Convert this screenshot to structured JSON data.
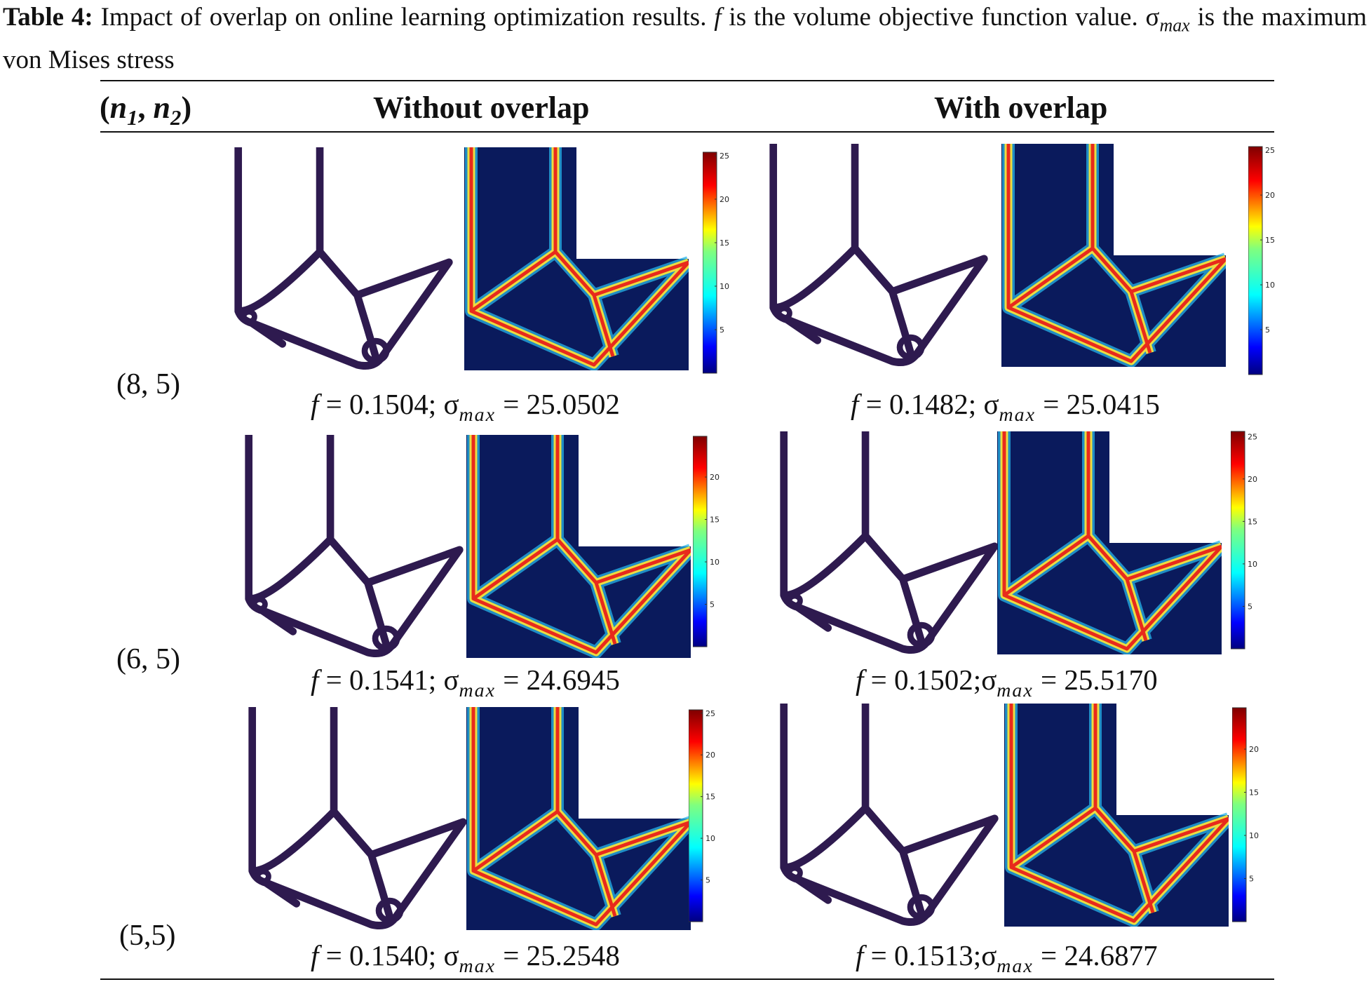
{
  "caption": {
    "label": "Table 4:",
    "text_1": "Impact of overlap on online learning optimization results.",
    "f_symbol": "f",
    "text_2": "is the volume objective function value. σ",
    "max_sub": "max",
    "text_3": "is the maximum von Mises stress"
  },
  "table": {
    "header": {
      "row_label": "(n1, n2)",
      "n1": "n",
      "n1_sub": "1",
      "n2": "n",
      "n2_sub": "2",
      "without": "Without overlap",
      "with": "With overlap"
    },
    "rows": [
      {
        "label": "(8, 5)",
        "without": {
          "f": "0.1504",
          "sep": ";",
          "sigma": "25.0502",
          "colorbar_ticks": [
            "25",
            "20",
            "15",
            "10",
            "5"
          ]
        },
        "with": {
          "f": "0.1482",
          "sep": ";",
          "sigma": "25.0415",
          "colorbar_ticks": [
            "25",
            "20",
            "15",
            "10",
            "5"
          ]
        }
      },
      {
        "label": "(6, 5)",
        "without": {
          "f": "0.1541",
          "sep": ";",
          "sigma": "24.6945",
          "colorbar_ticks": [
            "20",
            "15",
            "10",
            "5"
          ]
        },
        "with": {
          "f": "0.1502",
          "sep": ";",
          "sigma": "25.5170",
          "colorbar_ticks": [
            "25",
            "20",
            "15",
            "10",
            "5"
          ]
        }
      },
      {
        "label": "(5,5)",
        "without": {
          "f": "0.1540",
          "sep": ";",
          "sigma": "25.2548",
          "colorbar_ticks": [
            "25",
            "20",
            "15",
            "10",
            "5"
          ]
        },
        "with": {
          "f": "0.1513",
          "sep": ";",
          "sigma": "24.6877",
          "colorbar_ticks": [
            "20",
            "15",
            "10",
            "5"
          ]
        }
      }
    ],
    "result_f": "f",
    "result_eq": " = ",
    "result_sigma": "σ",
    "result_max": "max"
  },
  "colors": {
    "structure": "#2e1a4f",
    "stress_bg": "#0a1a5c",
    "stress_hot": "#e8201a",
    "stress_warm": "#f7e23a",
    "stress_cool": "#27b4e8"
  }
}
